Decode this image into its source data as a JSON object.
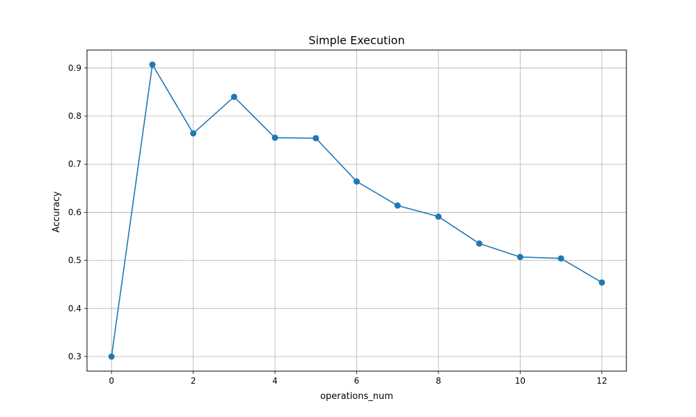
{
  "chart_data": {
    "type": "line",
    "title": "Simple Execution",
    "xlabel": "operations_num",
    "ylabel": "Accuracy",
    "x": [
      0,
      1,
      2,
      3,
      4,
      5,
      6,
      7,
      8,
      9,
      10,
      11,
      12
    ],
    "series": [
      {
        "values": [
          0.3,
          0.907,
          0.764,
          0.84,
          0.755,
          0.754,
          0.664,
          0.614,
          0.591,
          0.535,
          0.507,
          0.504,
          0.454
        ],
        "color": "#1f77b4",
        "marker": "circle"
      }
    ],
    "xticks": [
      0,
      2,
      4,
      6,
      8,
      10,
      12
    ],
    "yticks": [
      0.3,
      0.4,
      0.5,
      0.6,
      0.7,
      0.8,
      0.9
    ],
    "xtick_labels": [
      "0",
      "2",
      "4",
      "6",
      "8",
      "10",
      "12"
    ],
    "ytick_labels": [
      "0.3",
      "0.4",
      "0.5",
      "0.6",
      "0.7",
      "0.8",
      "0.9"
    ],
    "xlim": [
      -0.6,
      12.6
    ],
    "ylim": [
      0.2697,
      0.9373
    ],
    "grid": true,
    "grid_color": "#b0b0b0",
    "axis_color": "#000000"
  }
}
